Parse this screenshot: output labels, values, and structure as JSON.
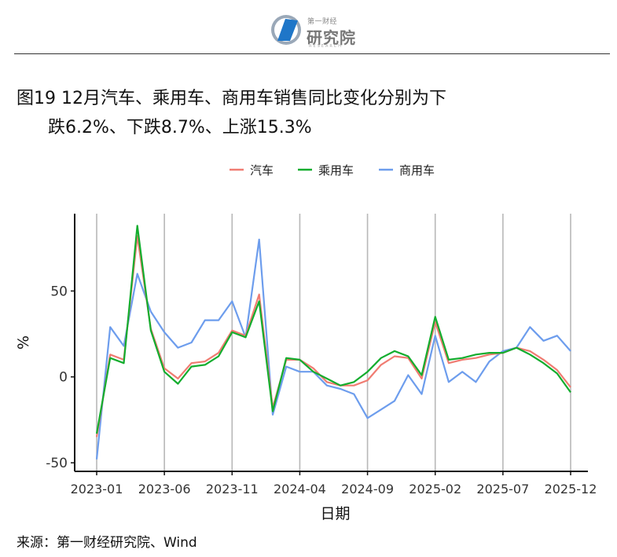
{
  "logo": {
    "top_text": "第一财经",
    "main_text": "研究院",
    "sub_text": "RESEARCH"
  },
  "title_line1": "图19 12月汽车、乘用车、商用车销售同比变化分别为下",
  "title_line2": "跌6.2%、下跌8.7%、上涨15.3%",
  "source": "来源：第一财经研究院、Wind",
  "chart_data": {
    "type": "line",
    "xlabel": "日期",
    "ylabel": "%",
    "ylim": [
      -55,
      95
    ],
    "y_ticks": [
      -50,
      0,
      50
    ],
    "x_tick_labels": [
      "2023-01",
      "2023-06",
      "2023-11",
      "2024-04",
      "2024-09",
      "2025-02",
      "2025-07",
      "2025-12"
    ],
    "x_tick_indices": [
      0,
      5,
      10,
      15,
      20,
      25,
      30,
      35
    ],
    "legend_position": "top-center",
    "grid": "vertical",
    "x": [
      "2023-01",
      "2023-02",
      "2023-03",
      "2023-04",
      "2023-05",
      "2023-06",
      "2023-07",
      "2023-08",
      "2023-09",
      "2023-10",
      "2023-11",
      "2023-12",
      "2024-01",
      "2024-02",
      "2024-03",
      "2024-04",
      "2024-05",
      "2024-06",
      "2024-07",
      "2024-08",
      "2024-09",
      "2024-10",
      "2024-11",
      "2024-12",
      "2025-01",
      "2025-02",
      "2025-03",
      "2025-04",
      "2025-05",
      "2025-06",
      "2025-07",
      "2025-08",
      "2025-09",
      "2025-10",
      "2025-11",
      "2025-12"
    ],
    "series": [
      {
        "name": "汽车",
        "color": "#f07c72",
        "values": [
          -35,
          13,
          10,
          82,
          28,
          5,
          -1,
          8,
          9,
          14,
          27,
          24,
          48,
          -18,
          10,
          10,
          5,
          -3,
          -5,
          -5,
          -2,
          7,
          12,
          11,
          -1,
          32,
          8,
          10,
          11,
          13,
          14,
          17,
          15,
          10,
          4,
          -6
        ]
      },
      {
        "name": "乘用车",
        "color": "#13ad2e",
        "values": [
          -33,
          11,
          8,
          88,
          27,
          3,
          -4,
          6,
          7,
          12,
          26,
          23,
          44,
          -20,
          11,
          10,
          3,
          -1,
          -5,
          -3,
          3,
          11,
          15,
          12,
          1,
          35,
          10,
          11,
          13,
          14,
          14,
          17,
          13,
          8,
          2,
          -9
        ]
      },
      {
        "name": "商用车",
        "color": "#6d9ded",
        "values": [
          -48,
          29,
          18,
          60,
          38,
          26,
          17,
          20,
          33,
          33,
          44,
          23,
          80,
          -22,
          6,
          3,
          3,
          -5,
          -7,
          -10,
          -24,
          -19,
          -14,
          1,
          -10,
          24,
          -3,
          3,
          -3,
          9,
          15,
          17,
          29,
          21,
          24,
          15
        ]
      }
    ]
  }
}
